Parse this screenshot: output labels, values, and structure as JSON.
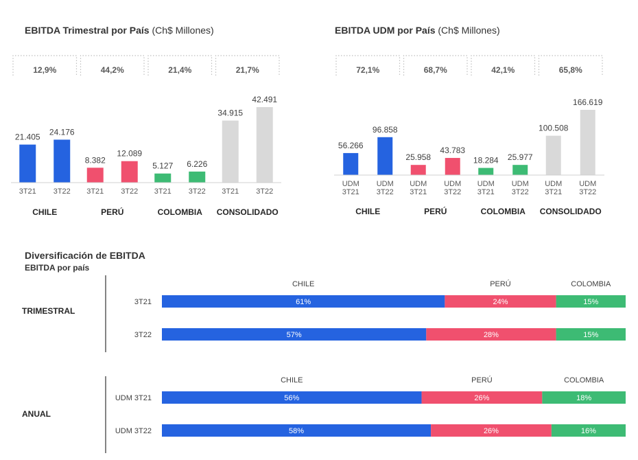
{
  "colors": {
    "chile": "#2563E0",
    "peru": "#F0506E",
    "colombia": "#3DBB74",
    "consolidado": "#D9D9D9"
  },
  "chart_data": [
    {
      "type": "bar",
      "title": "EBITDA Trimestral por País",
      "title_unit": "(Ch$ Millones)",
      "groups": [
        {
          "label": "CHILE",
          "margin": "12,9%",
          "color_key": "chile",
          "bars": [
            {
              "x": "3T21",
              "value": 21405,
              "label": "21.405"
            },
            {
              "x": "3T22",
              "value": 24176,
              "label": "24.176"
            }
          ]
        },
        {
          "label": "PERÚ",
          "margin": "44,2%",
          "color_key": "peru",
          "bars": [
            {
              "x": "3T21",
              "value": 8382,
              "label": "8.382"
            },
            {
              "x": "3T22",
              "value": 12089,
              "label": "12.089"
            }
          ]
        },
        {
          "label": "COLOMBIA",
          "margin": "21,4%",
          "color_key": "colombia",
          "bars": [
            {
              "x": "3T21",
              "value": 5127,
              "label": "5.127"
            },
            {
              "x": "3T22",
              "value": 6226,
              "label": "6.226"
            }
          ]
        },
        {
          "label": "CONSOLIDADO",
          "margin": "21,7%",
          "color_key": "consolidado",
          "bars": [
            {
              "x": "3T21",
              "value": 34915,
              "label": "34.915"
            },
            {
              "x": "3T22",
              "value": 42491,
              "label": "42.491"
            }
          ]
        }
      ]
    },
    {
      "type": "bar",
      "title": "EBITDA UDM por País",
      "title_unit": "(Ch$ Millones)",
      "groups": [
        {
          "label": "CHILE",
          "margin": "72,1%",
          "color_key": "chile",
          "bars": [
            {
              "x": [
                "UDM",
                "3T21"
              ],
              "value": 56266,
              "label": "56.266"
            },
            {
              "x": [
                "UDM",
                "3T22"
              ],
              "value": 96858,
              "label": "96.858"
            }
          ]
        },
        {
          "label": "PERÚ",
          "margin": "68,7%",
          "color_key": "peru",
          "bars": [
            {
              "x": [
                "UDM",
                "3T21"
              ],
              "value": 25958,
              "label": "25.958"
            },
            {
              "x": [
                "UDM",
                "3T22"
              ],
              "value": 43783,
              "label": "43.783"
            }
          ]
        },
        {
          "label": "COLOMBIA",
          "margin": "42,1%",
          "color_key": "colombia",
          "bars": [
            {
              "x": [
                "UDM",
                "3T21"
              ],
              "value": 18284,
              "label": "18.284"
            },
            {
              "x": [
                "UDM",
                "3T22"
              ],
              "value": 25977,
              "label": "25.977"
            }
          ]
        },
        {
          "label": "CONSOLIDADO",
          "margin": "65,8%",
          "color_key": "consolidado",
          "bars": [
            {
              "x": [
                "UDM",
                "3T21"
              ],
              "value": 100508,
              "label": "100.508"
            },
            {
              "x": [
                "UDM",
                "3T22"
              ],
              "value": 166619,
              "label": "166.619"
            }
          ]
        }
      ]
    },
    {
      "type": "bar",
      "orientation": "horizontal-stacked",
      "title": "Diversificación de EBITDA",
      "subtitle": "EBITDA por país",
      "series_names": [
        "CHILE",
        "PERÚ",
        "COLOMBIA"
      ],
      "sections": [
        {
          "label": "TRIMESTRAL",
          "rows": [
            {
              "label": "3T21",
              "values": [
                61,
                24,
                15
              ]
            },
            {
              "label": "3T22",
              "values": [
                57,
                28,
                15
              ]
            }
          ]
        },
        {
          "label": "ANUAL",
          "rows": [
            {
              "label": "UDM 3T21",
              "values": [
                56,
                26,
                18
              ]
            },
            {
              "label": "UDM 3T22",
              "values": [
                58,
                26,
                16
              ]
            }
          ]
        }
      ]
    }
  ]
}
